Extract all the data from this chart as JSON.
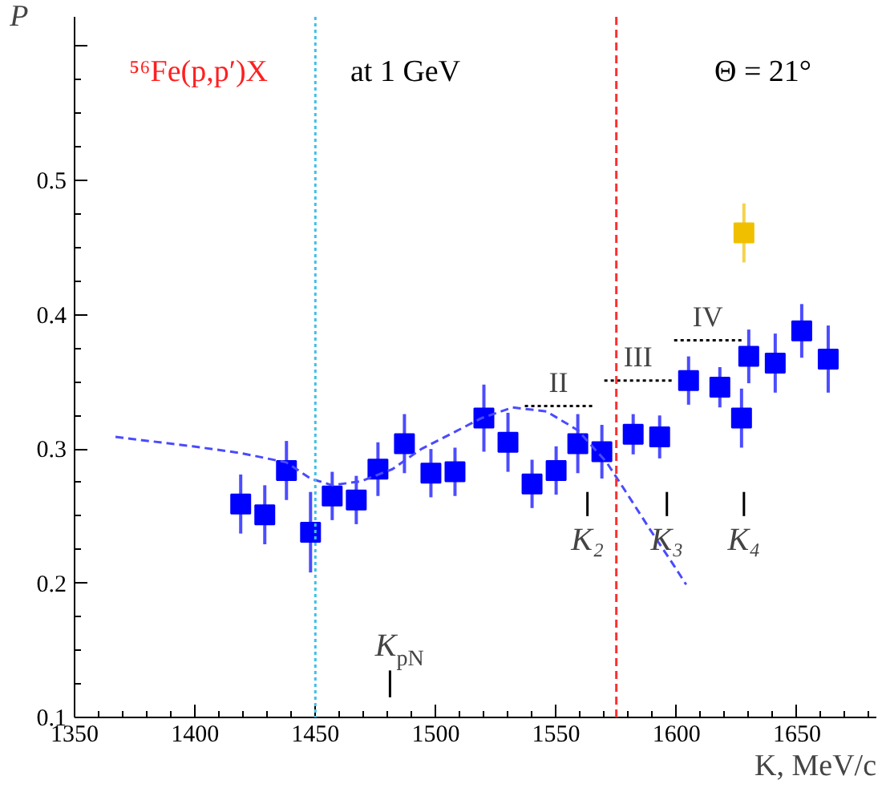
{
  "chart_data": {
    "type": "scatter",
    "xlabel": "K, MeV/c",
    "ylabel": "P",
    "xlim": [
      1350,
      1683
    ],
    "ylim": [
      0.1,
      0.622
    ],
    "xticks": [
      1350,
      1400,
      1450,
      1500,
      1550,
      1600,
      1650
    ],
    "yticks": [
      0.1,
      0.2,
      0.3,
      0.4,
      0.5,
      {
        "value": 0.6,
        "label": null
      }
    ],
    "grid": false,
    "series": [
      {
        "marker": "square",
        "color": "#0000ff",
        "x": [
          1419,
          1429,
          1438,
          1448,
          1457,
          1467,
          1476,
          1487,
          1498,
          1508,
          1520,
          1530,
          1540,
          1550,
          1559,
          1569,
          1582,
          1593,
          1605,
          1618,
          1627,
          1630,
          1641,
          1652,
          1663
        ],
        "values": [
          0.259,
          0.251,
          0.284,
          0.238,
          0.265,
          0.262,
          0.285,
          0.304,
          0.282,
          0.283,
          0.323,
          0.305,
          0.274,
          0.284,
          0.304,
          0.298,
          0.311,
          0.309,
          0.351,
          0.346,
          0.323,
          0.369,
          0.364,
          0.388,
          0.367
        ],
        "errors": [
          0.022,
          0.022,
          0.022,
          0.03,
          0.018,
          0.018,
          0.02,
          0.022,
          0.018,
          0.018,
          0.025,
          0.022,
          0.018,
          0.018,
          0.022,
          0.02,
          0.015,
          0.016,
          0.018,
          0.015,
          0.022,
          0.02,
          0.022,
          0.02,
          0.025
        ]
      },
      {
        "marker": "square",
        "color": "#f0c000",
        "x": [
          1628
        ],
        "values": [
          0.461
        ],
        "errors": [
          0.022
        ]
      },
      {
        "type": "line",
        "color": "#4a4aff",
        "line_style": "dashed",
        "x": [
          1367,
          1399,
          1419,
          1438,
          1448,
          1457,
          1469,
          1482,
          1494,
          1506,
          1519,
          1532,
          1546,
          1559,
          1571,
          1579,
          1589,
          1599,
          1604
        ],
        "values": [
          0.309,
          0.302,
          0.297,
          0.29,
          0.278,
          0.273,
          0.276,
          0.285,
          0.3,
          0.311,
          0.323,
          0.331,
          0.328,
          0.314,
          0.29,
          0.268,
          0.24,
          0.213,
          0.199
        ]
      },
      {
        "type": "line",
        "color": "#000000",
        "line_style": "dotted",
        "x": [
          1537,
          1566
        ],
        "values": [
          0.332,
          0.332
        ]
      },
      {
        "type": "line",
        "color": "#000000",
        "line_style": "dotted",
        "x": [
          1570,
          1598
        ],
        "values": [
          0.351,
          0.351
        ]
      },
      {
        "type": "line",
        "color": "#000000",
        "line_style": "dotted",
        "x": [
          1599,
          1628
        ],
        "values": [
          0.381,
          0.381
        ]
      },
      {
        "type": "line",
        "color": "#000000",
        "line_style": "solid",
        "x": [
          1563,
          1563
        ],
        "values": [
          0.25,
          0.268
        ]
      },
      {
        "type": "line",
        "color": "#000000",
        "line_style": "solid",
        "x": [
          1596,
          1596
        ],
        "values": [
          0.25,
          0.268
        ]
      },
      {
        "type": "line",
        "color": "#000000",
        "line_style": "solid",
        "x": [
          1628,
          1628
        ],
        "values": [
          0.25,
          0.268
        ]
      },
      {
        "type": "line",
        "color": "#000000",
        "line_style": "solid",
        "x": [
          1481,
          1481
        ],
        "values": [
          0.115,
          0.135
        ]
      }
    ],
    "ref_lines": [
      {
        "axis": "x",
        "value": 1450,
        "color": "#40c0e8",
        "line_style": "dotted"
      },
      {
        "axis": "x",
        "value": 1575,
        "color": "#ff3030",
        "line_style": "dashed"
      }
    ],
    "annotations": [
      "⁵⁶Fe(p,p′)X",
      "at 1 GeV",
      "Θ = 21°",
      {
        "text": "II",
        "x": 1551,
        "y": 0.332
      },
      {
        "text": "III",
        "x": 1584,
        "y": 0.351
      },
      {
        "text": "IV",
        "x": 1613,
        "y": 0.381
      },
      {
        "text": "K₂",
        "x": 1563,
        "y": 0.25
      },
      {
        "text": "K₃",
        "x": 1596,
        "y": 0.25
      },
      {
        "text": "K₄",
        "x": 1628,
        "y": 0.25
      },
      {
        "text": "K$_{pN}$",
        "x": 1481,
        "y": 0.135
      }
    ]
  }
}
